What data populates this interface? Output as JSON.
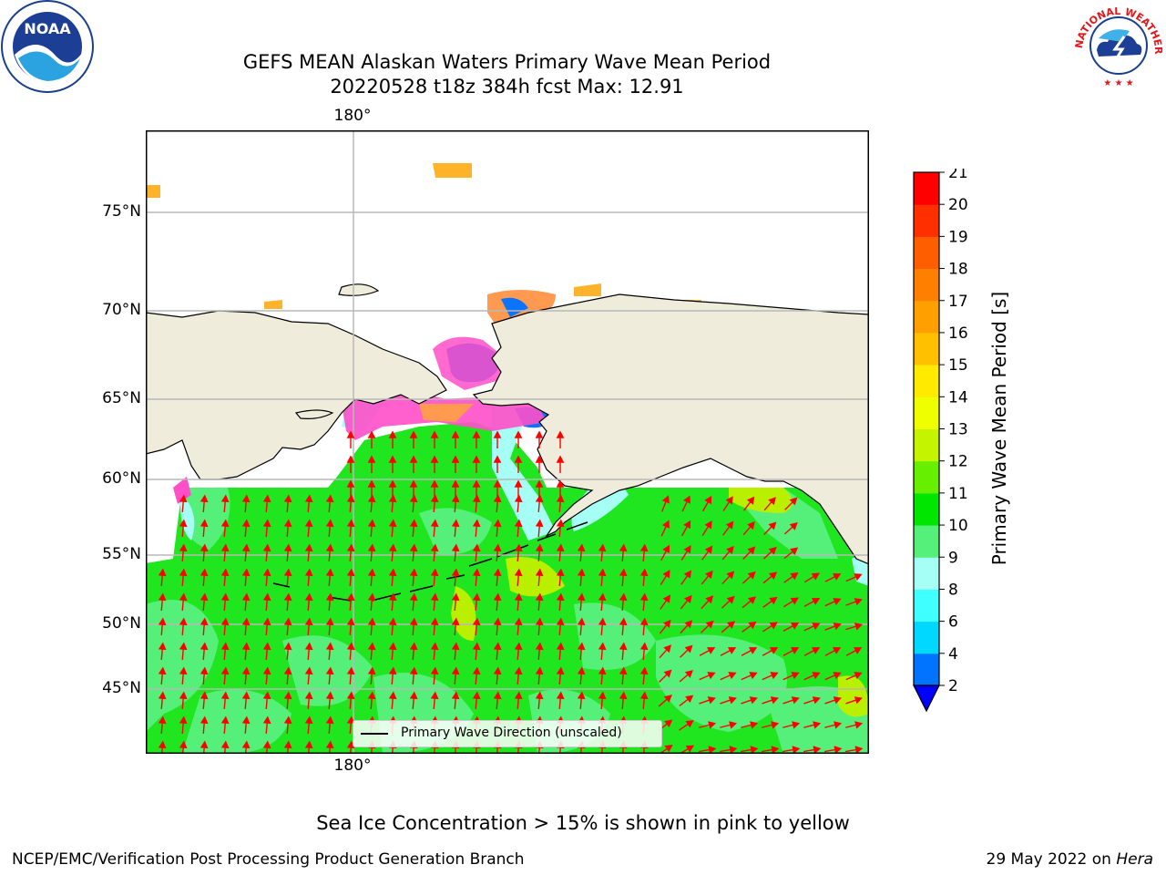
{
  "title": {
    "line1": "GEFS MEAN Alaskan Waters Primary Wave Mean Period",
    "line2": "20220528 t18z 384h fcst   Max: 12.91"
  },
  "map": {
    "lon_labels": {
      "top": "180°",
      "bottom": "180°"
    },
    "lat_labels": [
      "75°N",
      "70°N",
      "65°N",
      "60°N",
      "55°N",
      "50°N",
      "45°N"
    ],
    "legend": "Primary Wave Direction (unscaled)",
    "colors": {
      "land": "#efecdc",
      "ocean_main": "#1fe61f",
      "ocean_light": "#55f07a",
      "arrow": "#ff0000",
      "grid": "#b8b8b8"
    }
  },
  "colorbar": {
    "label": "Primary Wave Mean Period [s]",
    "ticks": [
      "2",
      "4",
      "6",
      "8",
      "9",
      "10",
      "11",
      "12",
      "13",
      "14",
      "15",
      "16",
      "17",
      "18",
      "19",
      "20",
      "21"
    ],
    "colors": [
      "#0073ff",
      "#00d8ff",
      "#40ffff",
      "#a6fff5",
      "#55f07a",
      "#00e600",
      "#66f000",
      "#c4f400",
      "#f0ff00",
      "#ffea00",
      "#ffc000",
      "#ffa000",
      "#ff8000",
      "#ff5e00",
      "#ff2f00",
      "#ff0000"
    ],
    "extend_color": "#0000ff"
  },
  "notes": {
    "ice": "Sea Ice Concentration > 15% is shown in pink to yellow",
    "footer_left": "NCEP/EMC/Verification Post Processing Product Generation Branch",
    "footer_date": "29 May 2022 on ",
    "footer_host": "Hera"
  },
  "logos": {
    "noaa": "NOAA",
    "nws": "NATIONAL WEATHER SERVICE"
  }
}
